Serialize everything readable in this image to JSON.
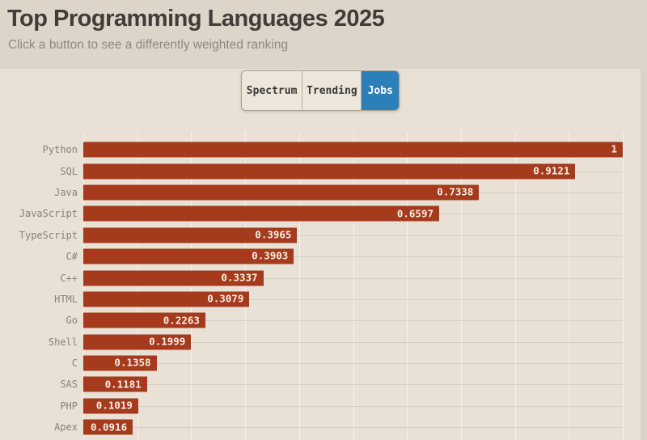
{
  "header": {
    "title": "Top Programming Languages 2025",
    "subtitle": "Click a button to see a differently weighted ranking"
  },
  "toolbar": {
    "buttons": [
      {
        "label": "Spectrum",
        "active": false
      },
      {
        "label": "Trending",
        "active": false
      },
      {
        "label": "Jobs",
        "active": true
      }
    ],
    "active_color": "#2c80ba"
  },
  "chart_data": {
    "type": "bar",
    "orientation": "horizontal",
    "title": "Top Programming Languages 2025",
    "categories": [
      "Python",
      "SQL",
      "Java",
      "JavaScript",
      "TypeScript",
      "C#",
      "C++",
      "HTML",
      "Go",
      "Shell",
      "C",
      "SAS",
      "PHP",
      "Apex"
    ],
    "values": [
      1,
      0.9121,
      0.7338,
      0.6597,
      0.3965,
      0.3903,
      0.3337,
      0.3079,
      0.2263,
      0.1999,
      0.1358,
      0.1181,
      0.1019,
      0.0916
    ],
    "value_labels": [
      "1",
      "0.9121",
      "0.7338",
      "0.6597",
      "0.3965",
      "0.3903",
      "0.3337",
      "0.3079",
      "0.2263",
      "0.1999",
      "0.1358",
      "0.1181",
      "0.1019",
      "0.0916"
    ],
    "xlim": [
      0,
      1
    ],
    "grid_x_step": 0.1,
    "grid": true,
    "legend": false,
    "bar_color": "#a53a1d",
    "value_text_color": "#f7f0e5",
    "label_text_color": "#8a8276",
    "panel_background": "#e9e1d5",
    "page_background": "#dbd3c7"
  }
}
